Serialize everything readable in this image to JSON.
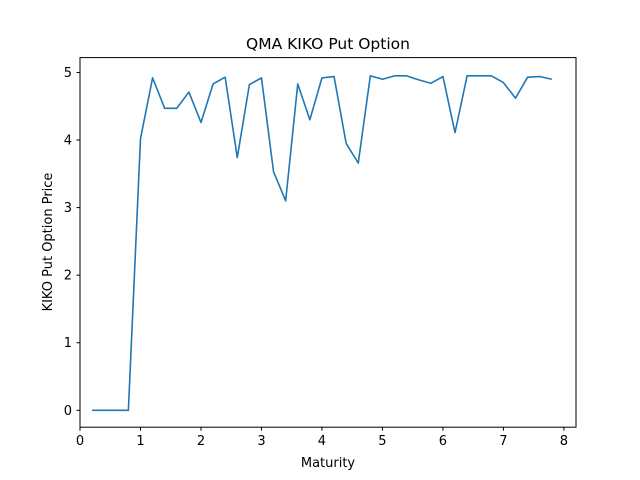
{
  "chart_data": {
    "type": "line",
    "title": "QMA KIKO Put Option",
    "xlabel": "Maturity",
    "ylabel": "KIKO Put Option Price",
    "xlim": [
      -0.0,
      8.2
    ],
    "ylim": [
      -0.25,
      5.22
    ],
    "xticks": [
      0,
      1,
      2,
      3,
      4,
      5,
      6,
      7,
      8
    ],
    "yticks": [
      0,
      1,
      2,
      3,
      4,
      5
    ],
    "grid": false,
    "series": [
      {
        "color": "#1f77b4",
        "x": [
          0.2,
          0.4,
          0.6,
          0.8,
          1.0,
          1.2,
          1.4,
          1.6,
          1.8,
          2.0,
          2.2,
          2.4,
          2.6,
          2.8,
          3.0,
          3.2,
          3.4,
          3.6,
          3.8,
          4.0,
          4.2,
          4.4,
          4.6,
          4.8,
          5.0,
          5.2,
          5.4,
          5.6,
          5.8,
          6.0,
          6.2,
          6.4,
          6.6,
          6.8,
          7.0,
          7.2,
          7.4,
          7.6,
          7.8
        ],
        "y": [
          0.0,
          0.0,
          0.0,
          0.0,
          4.02,
          4.92,
          4.47,
          4.47,
          4.71,
          4.26,
          4.83,
          4.93,
          3.74,
          4.82,
          4.92,
          3.53,
          3.1,
          4.83,
          4.3,
          4.92,
          4.94,
          3.95,
          3.66,
          4.95,
          4.9,
          4.95,
          4.95,
          4.89,
          4.84,
          4.94,
          4.11,
          4.95,
          4.95,
          4.95,
          4.85,
          4.62,
          4.93,
          4.94,
          4.9
        ]
      }
    ]
  }
}
